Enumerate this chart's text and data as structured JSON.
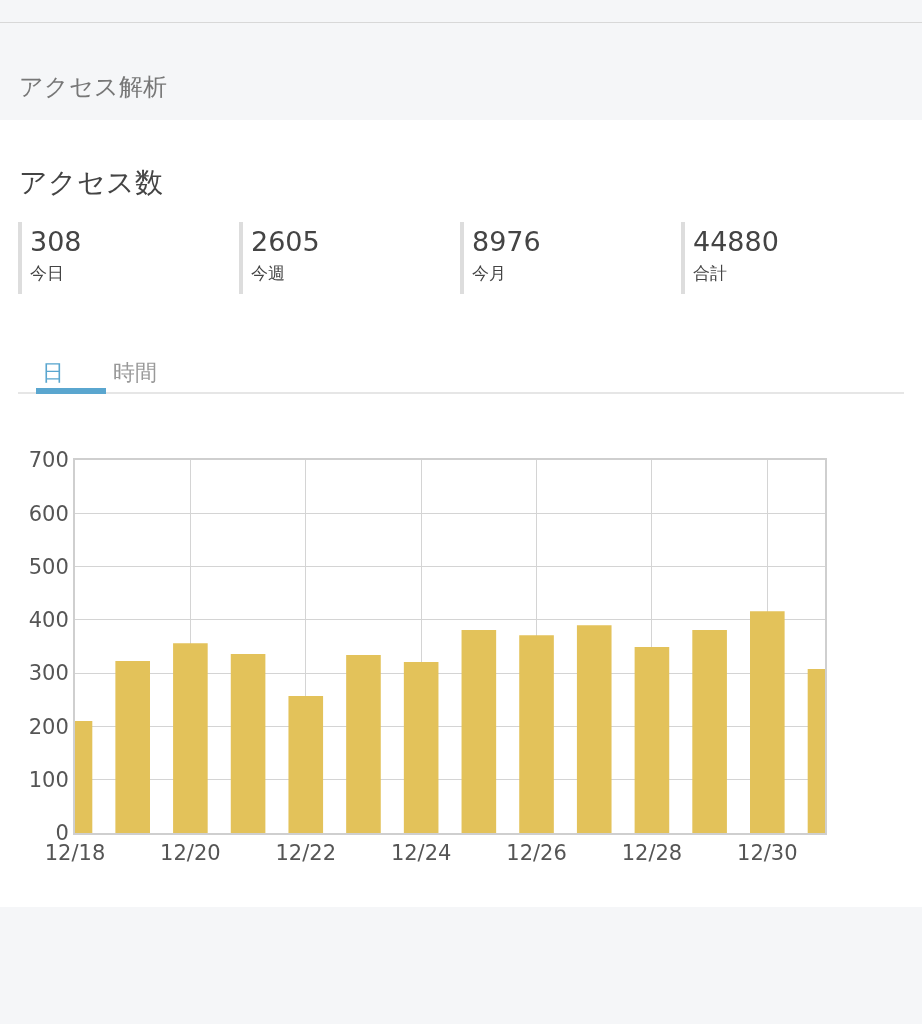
{
  "chart_data": [
    {
      "type": "other",
      "title": "アクセス解析",
      "subtitle": "アクセス数",
      "categories": [
        "今日",
        "今週",
        "今月",
        "合計"
      ],
      "values": [
        308,
        2605,
        8976,
        44880
      ],
      "data_labels": true
    },
    {
      "type": "bar",
      "annotations": [
        "日",
        "時間"
      ],
      "x": [
        "--12-18",
        "--12-19",
        "--12-20",
        "--12-21",
        "--12-22",
        "--12-23",
        "--12-24",
        "--12-25",
        "--12-26",
        "--12-27",
        "--12-28",
        "--12-29",
        "--12-30",
        "--12-31"
      ],
      "values": [
        210,
        323,
        356,
        336,
        257,
        334,
        321,
        381,
        371,
        390,
        349,
        381,
        416,
        308
      ],
      "color": "#e3c25a",
      "xlim": [
        "--12-18",
        "--12-31"
      ],
      "xticks": [
        {
          "value": "--12-18",
          "label": "12/18"
        },
        {
          "value": "--12-20",
          "label": "12/20"
        },
        {
          "value": "--12-22",
          "label": "12/22"
        },
        {
          "value": "--12-24",
          "label": "12/24"
        },
        {
          "value": "--12-26",
          "label": "12/26"
        },
        {
          "value": "--12-28",
          "label": "12/28"
        },
        {
          "value": "--12-30",
          "label": "12/30"
        }
      ],
      "ylim": [
        0,
        700
      ],
      "yticks": [
        0,
        100,
        200,
        300,
        400,
        500,
        600,
        700
      ],
      "grid": true
    }
  ]
}
